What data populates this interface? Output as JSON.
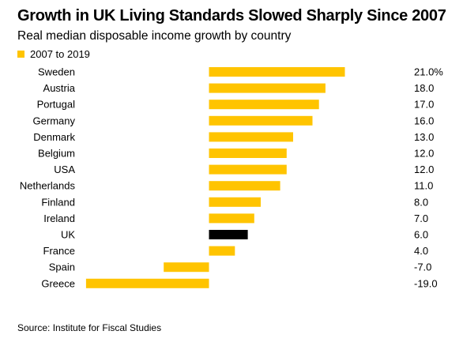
{
  "title": "Growth in UK Living Standards Slowed Sharply Since 2007",
  "subtitle": "Real median disposable income growth by country",
  "source": "Source: Institute for Fiscal Studies",
  "colors": {
    "series": "#FFC400",
    "highlight": "#000000"
  },
  "chart_data": {
    "type": "bar",
    "orientation": "horizontal",
    "title": "Growth in UK Living Standards Slowed Sharply Since 2007",
    "subtitle": "Real median disposable income growth by country",
    "legend": {
      "position": "top-left",
      "entries": [
        "2007 to 2019"
      ]
    },
    "categories": [
      "Sweden",
      "Austria",
      "Portugal",
      "Germany",
      "Denmark",
      "Belgium",
      "USA",
      "Netherlands",
      "Finland",
      "Ireland",
      "UK",
      "France",
      "Spain",
      "Greece"
    ],
    "series": [
      {
        "name": "2007 to 2019",
        "values": [
          21.0,
          18.0,
          17.0,
          16.0,
          13.0,
          12.0,
          12.0,
          11.0,
          8.0,
          7.0,
          6.0,
          4.0,
          -7.0,
          -19.0
        ]
      }
    ],
    "value_labels": [
      "21.0%",
      "18.0",
      "17.0",
      "16.0",
      "13.0",
      "12.0",
      "12.0",
      "11.0",
      "8.0",
      "7.0",
      "6.0",
      "4.0",
      "-7.0",
      "-19.0"
    ],
    "highlight_category": "UK",
    "xlim": [
      -19,
      21
    ],
    "grid": false
  }
}
